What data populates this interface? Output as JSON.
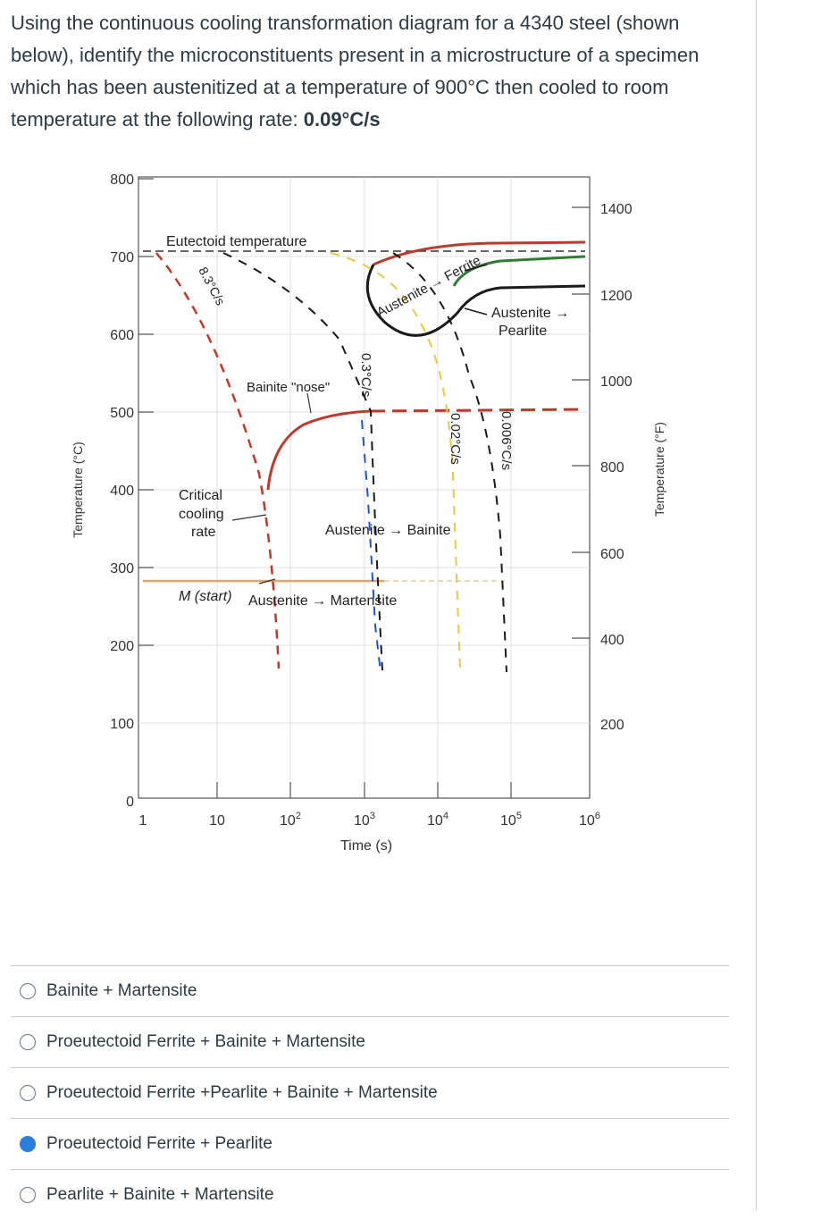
{
  "question": {
    "text": "Using the continuous cooling transformation diagram for a 4340 steel (shown below), identify the microconstituents present in a microstructure of a specimen which has been austenitized at a temperature of 900°C then cooled to room temperature at the following rate: ",
    "rate": "0.09°C/s"
  },
  "diagram": {
    "left_axis_label": "Temperature (°C)",
    "right_axis_label": "Temperature (°F)",
    "x_axis_label": "Time (s)",
    "left_ticks": [
      "800",
      "700",
      "600",
      "500",
      "400",
      "300",
      "200",
      "100",
      "0"
    ],
    "right_ticks": [
      "1400",
      "1200",
      "1000",
      "800",
      "600",
      "400",
      "200"
    ],
    "x_ticks": [
      {
        "base": "1",
        "exp": ""
      },
      {
        "base": "10",
        "exp": ""
      },
      {
        "base": "10",
        "exp": "2"
      },
      {
        "base": "10",
        "exp": "3"
      },
      {
        "base": "10",
        "exp": "4"
      },
      {
        "base": "10",
        "exp": "5"
      },
      {
        "base": "10",
        "exp": "6"
      }
    ],
    "labels": {
      "eutectoid": "Eutectoid temperature",
      "ferrite": "Austenite → Ferrite",
      "pearlite_1": "Austenite →",
      "pearlite_2": "Pearlite",
      "bainite_nose": "Bainite \"nose\"",
      "critical_1": "Critical",
      "critical_2": "cooling",
      "critical_3": "rate",
      "aus_bainite": "Austenite → Bainite",
      "mstart": "M (start)",
      "aus_martensite": "Austenite → Martensite"
    },
    "rates": [
      "8.3°C/s",
      "0.3°C/s",
      "0.02°C/s",
      "0.006°C/s"
    ],
    "colors": {
      "red": "#c0392b",
      "black": "#1a1a1a",
      "green": "#2e7d32",
      "orange": "#f0a060",
      "yellow": "#e6c84a"
    }
  },
  "answers": [
    {
      "label": "Bainite + Martensite",
      "selected": false
    },
    {
      "label": "Proeutectoid Ferrite + Bainite + Martensite",
      "selected": false
    },
    {
      "label": "Proeutectoid Ferrite +Pearlite + Bainite + Martensite",
      "selected": false
    },
    {
      "label": "Proeutectoid Ferrite + Pearlite",
      "selected": true
    },
    {
      "label": "Pearlite + Bainite + Martensite",
      "selected": false
    }
  ]
}
